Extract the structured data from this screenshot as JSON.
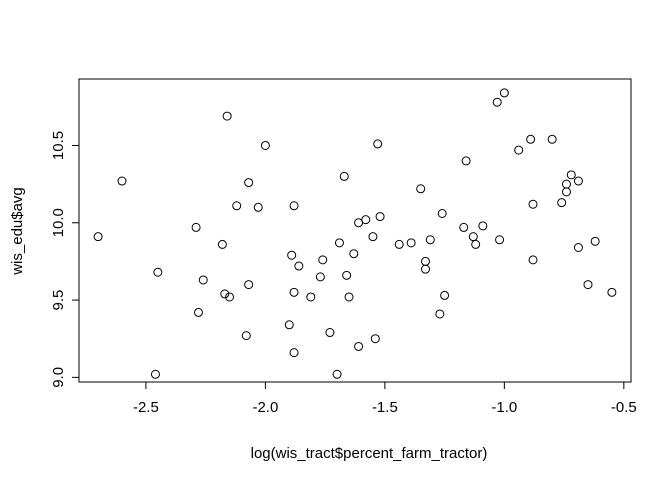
{
  "chart_data": {
    "type": "scatter",
    "xlabel": "log(wis_tract$percent_farm_tractor)",
    "ylabel": "wis_edu$avg",
    "xlim": [
      -2.78,
      -0.47
    ],
    "ylim": [
      8.97,
      10.93
    ],
    "x_ticks": [
      -2.5,
      -2.0,
      -1.5,
      -1.0,
      -0.5
    ],
    "x_tick_labels": [
      "-2.5",
      "-2.0",
      "-1.5",
      "-1.0",
      "-0.5"
    ],
    "y_ticks": [
      9.0,
      9.5,
      10.0,
      10.5
    ],
    "y_tick_labels": [
      "9.0",
      "9.5",
      "10.0",
      "10.5"
    ],
    "grid": false,
    "marker": "open-circle",
    "points": [
      [
        -2.7,
        9.91
      ],
      [
        -2.6,
        10.27
      ],
      [
        -2.46,
        9.02
      ],
      [
        -2.45,
        9.68
      ],
      [
        -2.29,
        9.97
      ],
      [
        -2.28,
        9.42
      ],
      [
        -2.26,
        9.63
      ],
      [
        -2.18,
        9.86
      ],
      [
        -2.17,
        9.54
      ],
      [
        -2.16,
        10.69
      ],
      [
        -2.15,
        9.52
      ],
      [
        -2.12,
        10.11
      ],
      [
        -2.08,
        9.27
      ],
      [
        -2.07,
        10.26
      ],
      [
        -2.07,
        9.6
      ],
      [
        -2.03,
        10.1
      ],
      [
        -2.0,
        10.5
      ],
      [
        -1.9,
        9.34
      ],
      [
        -1.89,
        9.79
      ],
      [
        -1.88,
        9.16
      ],
      [
        -1.88,
        9.55
      ],
      [
        -1.88,
        10.11
      ],
      [
        -1.86,
        9.72
      ],
      [
        -1.81,
        9.52
      ],
      [
        -1.77,
        9.65
      ],
      [
        -1.76,
        9.76
      ],
      [
        -1.73,
        9.29
      ],
      [
        -1.7,
        9.02
      ],
      [
        -1.69,
        9.87
      ],
      [
        -1.67,
        10.3
      ],
      [
        -1.66,
        9.66
      ],
      [
        -1.65,
        9.52
      ],
      [
        -1.63,
        9.8
      ],
      [
        -1.61,
        9.2
      ],
      [
        -1.61,
        10.0
      ],
      [
        -1.58,
        10.02
      ],
      [
        -1.55,
        9.91
      ],
      [
        -1.54,
        9.25
      ],
      [
        -1.53,
        10.51
      ],
      [
        -1.52,
        10.04
      ],
      [
        -1.44,
        9.86
      ],
      [
        -1.39,
        9.87
      ],
      [
        -1.35,
        10.22
      ],
      [
        -1.33,
        9.75
      ],
      [
        -1.33,
        9.7
      ],
      [
        -1.31,
        9.89
      ],
      [
        -1.27,
        9.41
      ],
      [
        -1.26,
        10.06
      ],
      [
        -1.25,
        9.53
      ],
      [
        -1.17,
        9.97
      ],
      [
        -1.16,
        10.4
      ],
      [
        -1.13,
        9.91
      ],
      [
        -1.12,
        9.86
      ],
      [
        -1.09,
        9.98
      ],
      [
        -1.03,
        10.78
      ],
      [
        -1.02,
        9.89
      ],
      [
        -1.0,
        10.84
      ],
      [
        -0.94,
        10.47
      ],
      [
        -0.89,
        10.54
      ],
      [
        -0.88,
        10.12
      ],
      [
        -0.88,
        9.76
      ],
      [
        -0.8,
        10.54
      ],
      [
        -0.76,
        10.13
      ],
      [
        -0.74,
        10.25
      ],
      [
        -0.74,
        10.2
      ],
      [
        -0.72,
        10.31
      ],
      [
        -0.69,
        10.27
      ],
      [
        -0.69,
        9.84
      ],
      [
        -0.65,
        9.6
      ],
      [
        -0.62,
        9.88
      ],
      [
        -0.55,
        9.55
      ]
    ]
  }
}
